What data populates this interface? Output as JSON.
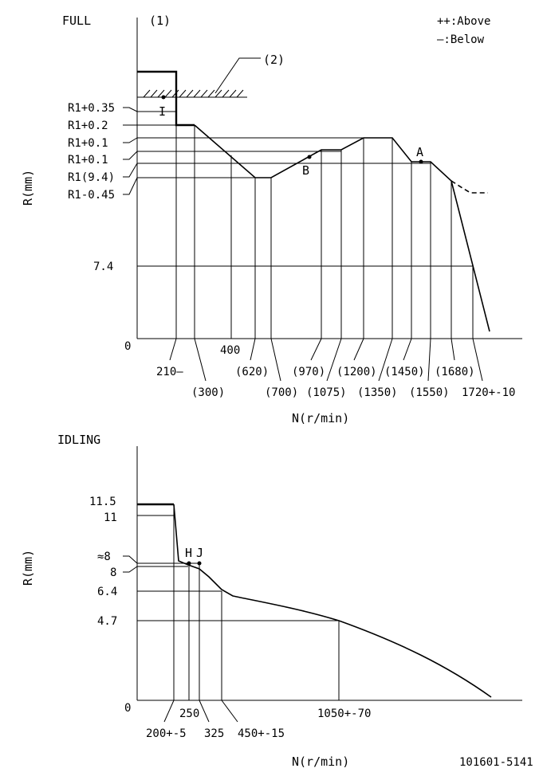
{
  "legend": {
    "above": "++:Above",
    "below": "—:Below"
  },
  "doc_number": "101601-5141",
  "full": {
    "title": "FULL",
    "mark1": "(1)",
    "mark2": "(2)",
    "y_axis_label": "R(mm)",
    "x_axis_label": "N(r/min)",
    "y_labels": [
      "R1+0.35",
      "R1+0.2",
      "R1+0.1",
      "R1+0.1",
      "R1(9.4)",
      "R1-0.45",
      "7.4",
      "0"
    ],
    "x_labels_row1": [
      "210—",
      "400",
      "(620)",
      "(970)",
      "(1200)",
      "(1450)",
      "(1680)"
    ],
    "x_labels_row2": [
      "(300)",
      "(700)",
      "(1075)",
      "(1350)",
      "(1550)",
      "1720+-10"
    ],
    "points": {
      "I": "I",
      "A": "A",
      "B": "B"
    }
  },
  "idling": {
    "title": "IDLING",
    "y_axis_label": "R(mm)",
    "x_axis_label": "N(r/min)",
    "y_labels": [
      "11.5",
      "11",
      "≈8",
      "8",
      "6.4",
      "4.7",
      "0"
    ],
    "x_labels_row1": [
      "250",
      "1050+-70"
    ],
    "x_labels_row2": [
      "200+-5",
      "325",
      "450+-15"
    ],
    "points": {
      "H": "H",
      "J": "J"
    }
  }
}
